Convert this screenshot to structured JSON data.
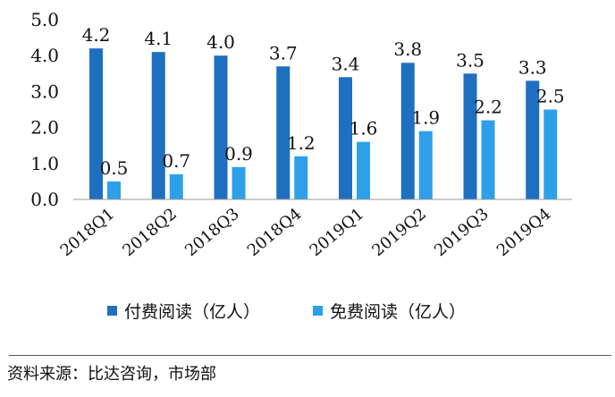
{
  "chart_data": {
    "type": "bar",
    "categories": [
      "2018Q1",
      "2018Q2",
      "2018Q3",
      "2018Q4",
      "2019Q1",
      "2019Q2",
      "2019Q3",
      "2019Q4"
    ],
    "series": [
      {
        "name": "付费阅读（亿人）",
        "values": [
          4.2,
          4.1,
          4.0,
          3.7,
          3.4,
          3.8,
          3.5,
          3.3
        ],
        "color": "#1f6fc0"
      },
      {
        "name": "免费阅读（亿人）",
        "values": [
          0.5,
          0.7,
          0.9,
          1.2,
          1.6,
          1.9,
          2.2,
          2.5
        ],
        "color": "#2ea0ea"
      }
    ],
    "data_labels": [
      [
        "4.2",
        "4.1",
        "4.0",
        "3.7",
        "3.4",
        "3.8",
        "3.5",
        "3.3"
      ],
      [
        "0.5",
        "0.7",
        "0.9",
        "1.2",
        "1.6",
        "1.9",
        "2.2",
        "2.5"
      ]
    ],
    "y_ticks": [
      "0.0",
      "1.0",
      "2.0",
      "3.0",
      "4.0",
      "5.0"
    ],
    "ylim": [
      0,
      5
    ],
    "grid": false,
    "legend_position": "bottom",
    "title": "",
    "xlabel": "",
    "ylabel": ""
  },
  "legend": {
    "items": [
      {
        "label": "付费阅读（亿人）",
        "color": "#1f6fc0"
      },
      {
        "label": "免费阅读（亿人）",
        "color": "#2ea0ea"
      }
    ]
  },
  "source": "资料来源：比达咨询，市场部"
}
